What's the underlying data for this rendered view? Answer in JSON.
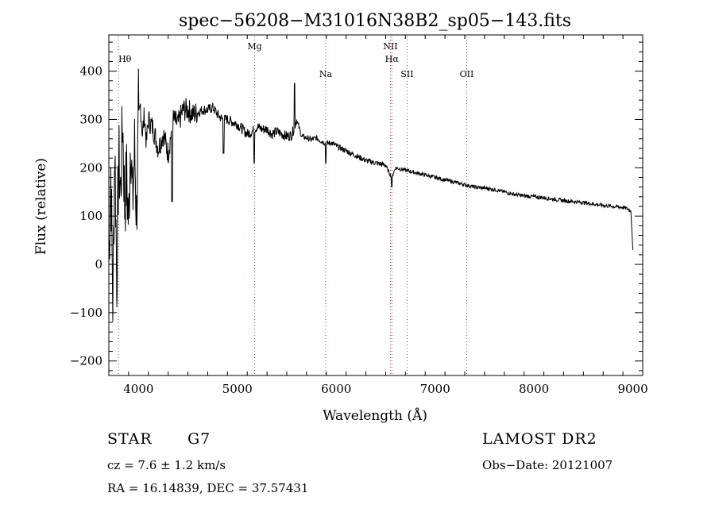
{
  "chart_data": {
    "type": "line",
    "title": "spec−56208−M31016N38B2_sp05−143.fits",
    "xlabel": "Wavelength (Å)",
    "ylabel": "Flux (relative)",
    "xlim": [
      3700,
      9100
    ],
    "ylim": [
      -230,
      475
    ],
    "x_ticks": [
      4000,
      5000,
      6000,
      7000,
      8000,
      9000
    ],
    "x_tick_labels": [
      "4000",
      "5000",
      "6000",
      "7000",
      "8000",
      "9000"
    ],
    "y_ticks": [
      -200,
      -100,
      0,
      100,
      200,
      300,
      400
    ],
    "y_tick_labels": [
      "−200",
      "−100",
      "0",
      "100",
      "200",
      "300",
      "400"
    ],
    "grid": false,
    "line_color": "#000000",
    "marker_color": "#cc3333",
    "spectral_lines": [
      {
        "label": "Hθ",
        "x": 3798
      },
      {
        "label": "Mg",
        "x": 5175
      },
      {
        "label": "Na",
        "x": 5893
      },
      {
        "label": "NII",
        "x": 6548
      },
      {
        "label": "Hα",
        "x": 6563
      },
      {
        "label": "SII",
        "x": 6717
      },
      {
        "label": "OII",
        "x": 7320
      }
    ],
    "series": [
      {
        "x": [
          3700,
          3720,
          3740,
          3760,
          3780,
          3800,
          3820,
          3840,
          3860,
          3880,
          3900,
          3920,
          3940,
          3960,
          3980,
          4000,
          4020,
          4040,
          4060,
          4080,
          4100,
          4150,
          4200,
          4250,
          4300,
          4350,
          4400,
          4450,
          4500,
          4550,
          4600,
          4650,
          4700,
          4750,
          4800,
          4850,
          4900,
          4950,
          5000,
          5050,
          5100,
          5150,
          5200,
          5250,
          5300,
          5350,
          5400,
          5450,
          5500,
          5550,
          5600,
          5650,
          5700,
          5750,
          5800,
          5850,
          5900,
          5950,
          6000,
          6050,
          6100,
          6150,
          6200,
          6300,
          6400,
          6500,
          6560,
          6600,
          6700,
          6800,
          6900,
          7000,
          7100,
          7200,
          7300,
          7400,
          7500,
          7600,
          7700,
          7800,
          7900,
          8000,
          8100,
          8200,
          8300,
          8400,
          8500,
          8600,
          8700,
          8800,
          8900,
          8950,
          8980,
          9000
        ],
        "y": [
          0,
          200,
          -80,
          250,
          -30,
          220,
          150,
          300,
          120,
          180,
          80,
          280,
          120,
          240,
          100,
          290,
          330,
          270,
          310,
          250,
          300,
          280,
          240,
          270,
          230,
          300,
          290,
          320,
          320,
          310,
          315,
          320,
          320,
          325,
          310,
          300,
          300,
          295,
          290,
          280,
          270,
          275,
          285,
          280,
          280,
          270,
          275,
          270,
          265,
          268,
          300,
          265,
          262,
          258,
          262,
          255,
          250,
          252,
          245,
          240,
          235,
          230,
          225,
          215,
          210,
          205,
          180,
          200,
          195,
          190,
          185,
          180,
          175,
          170,
          165,
          160,
          158,
          155,
          150,
          145,
          142,
          140,
          138,
          135,
          132,
          130,
          128,
          125,
          122,
          120,
          118,
          115,
          110,
          30
        ]
      }
    ]
  },
  "info": {
    "class_label": "STAR",
    "subclass_label": "G7",
    "cz_text": "cz = 7.6 ± 1.2 km/s",
    "coords_text": "RA =  16.14839, DEC =  37.57431",
    "survey_text": "LAMOST DR2",
    "obs_date_text": "Obs−Date: 20121007"
  }
}
